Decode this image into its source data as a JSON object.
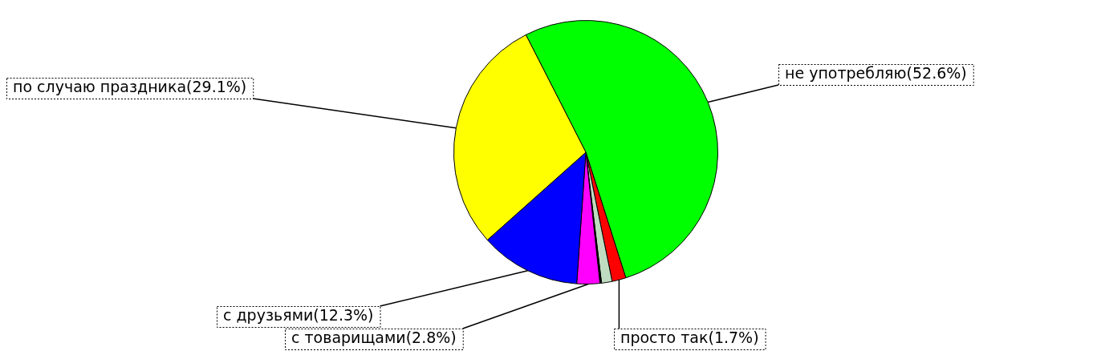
{
  "chart_data": {
    "type": "pie",
    "categories": [
      "не употребляю",
      "просто так",
      null,
      null,
      "с товарищами",
      "с друзьями",
      "по случаю праздника"
    ],
    "values": [
      52.6,
      1.7,
      1.3,
      0.2,
      2.8,
      12.3,
      29.1
    ],
    "colors": [
      "#00ff00",
      "#ff0000",
      "#c0dcc0",
      "#000000",
      "#ff00ff",
      "#0000ff",
      "#ffff00"
    ],
    "value_labels": [
      "(52.6%)",
      "(1.7%)",
      null,
      null,
      "(2.8%)",
      "(12.3%)",
      "(29.1%)"
    ],
    "legend": false
  }
}
